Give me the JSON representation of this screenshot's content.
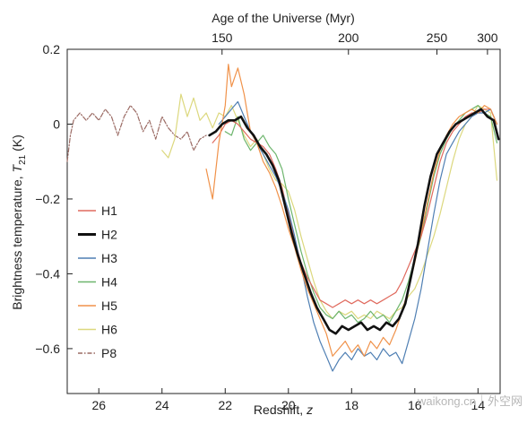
{
  "chart_data": {
    "type": "line",
    "title": "",
    "xlabel": "Redshift, z",
    "ylabel": "Brightness temperature, T21 (K)",
    "ylabel_parts": {
      "pre": "Brightness temperature, ",
      "T": "T",
      "sub": "21",
      "post": " (K)"
    },
    "xlabel_parts": {
      "pre": "Redshift, ",
      "z": "z"
    },
    "top_xlabel": "Age of the Universe (Myr)",
    "xlim": [
      27.0,
      13.3
    ],
    "ylim": [
      -0.72,
      0.2
    ],
    "x_reversed": true,
    "xticks": [
      26,
      24,
      22,
      20,
      18,
      16,
      14
    ],
    "xtick_labels": [
      "26",
      "24",
      "22",
      "20",
      "18",
      "16",
      "14"
    ],
    "yticks": [
      0.2,
      0,
      -0.2,
      -0.4,
      -0.6
    ],
    "ytick_labels": [
      "0.2",
      "0",
      "−0.2",
      "−0.4",
      "−0.6"
    ],
    "top_ticks": [
      {
        "label": "150",
        "z": 22.1
      },
      {
        "label": "200",
        "z": 18.1
      },
      {
        "label": "250",
        "z": 15.3
      },
      {
        "label": "300",
        "z": 13.7
      }
    ],
    "legend_position": "lower-left",
    "grid": false,
    "series": [
      {
        "name": "H1",
        "color": "#e06a5e",
        "width": 1.2,
        "dash": "",
        "x": [
          22.4,
          22.2,
          22.0,
          21.8,
          21.6,
          21.4,
          21.2,
          21.0,
          20.8,
          20.6,
          20.4,
          20.2,
          20.0,
          19.8,
          19.6,
          19.4,
          19.2,
          19.0,
          18.8,
          18.6,
          18.4,
          18.2,
          18.0,
          17.8,
          17.6,
          17.4,
          17.2,
          17.0,
          16.8,
          16.6,
          16.4,
          16.2,
          16.0,
          15.8,
          15.6,
          15.4,
          15.2,
          15.0,
          14.8,
          14.6,
          14.4,
          14.2,
          14.0,
          13.8,
          13.6,
          13.4
        ],
        "y": [
          -0.05,
          -0.03,
          0.0,
          0.01,
          0.0,
          -0.02,
          -0.04,
          -0.05,
          -0.06,
          -0.08,
          -0.12,
          -0.17,
          -0.24,
          -0.31,
          -0.37,
          -0.41,
          -0.44,
          -0.47,
          -0.48,
          -0.49,
          -0.48,
          -0.47,
          -0.48,
          -0.47,
          -0.48,
          -0.47,
          -0.48,
          -0.47,
          -0.46,
          -0.45,
          -0.42,
          -0.38,
          -0.34,
          -0.3,
          -0.24,
          -0.17,
          -0.1,
          -0.05,
          -0.02,
          0.0,
          0.02,
          0.03,
          0.03,
          0.04,
          0.04,
          0.0
        ]
      },
      {
        "name": "H2",
        "color": "#111111",
        "width": 2.6,
        "dash": "",
        "x": [
          22.5,
          22.3,
          22.1,
          21.9,
          21.7,
          21.5,
          21.3,
          21.1,
          20.9,
          20.7,
          20.5,
          20.3,
          20.1,
          19.9,
          19.7,
          19.5,
          19.3,
          19.1,
          18.9,
          18.7,
          18.5,
          18.3,
          18.1,
          17.9,
          17.7,
          17.5,
          17.3,
          17.1,
          16.9,
          16.7,
          16.5,
          16.3,
          16.1,
          15.9,
          15.7,
          15.5,
          15.3,
          15.1,
          14.9,
          14.7,
          14.5,
          14.3,
          14.1,
          13.9,
          13.7,
          13.5,
          13.35
        ],
        "y": [
          -0.03,
          -0.02,
          0.0,
          0.01,
          0.01,
          0.02,
          -0.01,
          -0.03,
          -0.06,
          -0.08,
          -0.11,
          -0.15,
          -0.22,
          -0.29,
          -0.35,
          -0.4,
          -0.45,
          -0.49,
          -0.52,
          -0.55,
          -0.56,
          -0.54,
          -0.55,
          -0.54,
          -0.53,
          -0.55,
          -0.54,
          -0.55,
          -0.53,
          -0.54,
          -0.52,
          -0.48,
          -0.4,
          -0.32,
          -0.22,
          -0.14,
          -0.08,
          -0.05,
          -0.02,
          0.0,
          0.01,
          0.02,
          0.03,
          0.04,
          0.02,
          0.01,
          -0.04
        ]
      },
      {
        "name": "H3",
        "color": "#4f7fb3",
        "width": 1.2,
        "dash": "",
        "x": [
          22.2,
          22.0,
          21.8,
          21.6,
          21.4,
          21.2,
          21.0,
          20.8,
          20.6,
          20.4,
          20.2,
          20.0,
          19.8,
          19.6,
          19.4,
          19.2,
          19.0,
          18.8,
          18.6,
          18.4,
          18.2,
          18.0,
          17.8,
          17.6,
          17.4,
          17.2,
          17.0,
          16.8,
          16.6,
          16.4,
          16.2,
          16.0,
          15.8,
          15.6,
          15.4,
          15.2,
          15.0,
          14.8,
          14.6,
          14.4,
          14.2,
          14.0,
          13.8,
          13.6,
          13.4
        ],
        "y": [
          0.0,
          0.02,
          0.04,
          0.06,
          0.02,
          -0.02,
          -0.05,
          -0.08,
          -0.11,
          -0.14,
          -0.18,
          -0.23,
          -0.3,
          -0.38,
          -0.46,
          -0.53,
          -0.58,
          -0.62,
          -0.66,
          -0.63,
          -0.61,
          -0.63,
          -0.6,
          -0.62,
          -0.61,
          -0.63,
          -0.6,
          -0.62,
          -0.61,
          -0.64,
          -0.58,
          -0.52,
          -0.44,
          -0.34,
          -0.24,
          -0.15,
          -0.08,
          -0.05,
          -0.02,
          0.0,
          0.02,
          0.03,
          0.03,
          0.04,
          0.0
        ]
      },
      {
        "name": "H4",
        "color": "#6db56d",
        "width": 1.2,
        "dash": "",
        "x": [
          22.0,
          21.8,
          21.6,
          21.4,
          21.2,
          21.0,
          20.8,
          20.6,
          20.4,
          20.2,
          20.0,
          19.8,
          19.6,
          19.4,
          19.2,
          19.0,
          18.8,
          18.6,
          18.4,
          18.2,
          18.0,
          17.8,
          17.6,
          17.4,
          17.2,
          17.0,
          16.8,
          16.6,
          16.4,
          16.2,
          16.0,
          15.8,
          15.6,
          15.4,
          15.2,
          15.0,
          14.8,
          14.6,
          14.4,
          14.2,
          14.0,
          13.8,
          13.6,
          13.4
        ],
        "y": [
          -0.02,
          -0.03,
          0.02,
          -0.04,
          -0.07,
          -0.05,
          -0.03,
          -0.06,
          -0.08,
          -0.12,
          -0.2,
          -0.27,
          -0.34,
          -0.4,
          -0.45,
          -0.49,
          -0.51,
          -0.52,
          -0.5,
          -0.52,
          -0.51,
          -0.53,
          -0.52,
          -0.5,
          -0.52,
          -0.51,
          -0.53,
          -0.5,
          -0.47,
          -0.42,
          -0.36,
          -0.3,
          -0.22,
          -0.14,
          -0.08,
          -0.04,
          -0.01,
          0.01,
          0.03,
          0.04,
          0.05,
          0.03,
          0.02,
          -0.05
        ]
      },
      {
        "name": "H5",
        "color": "#f0924a",
        "width": 1.2,
        "dash": "",
        "x": [
          22.6,
          22.4,
          22.2,
          22.0,
          21.9,
          21.8,
          21.6,
          21.4,
          21.2,
          21.0,
          20.8,
          20.6,
          20.4,
          20.2,
          20.0,
          19.8,
          19.6,
          19.4,
          19.2,
          19.0,
          18.8,
          18.6,
          18.4,
          18.2,
          18.0,
          17.8,
          17.6,
          17.4,
          17.2,
          17.0,
          16.8,
          16.6,
          16.4,
          16.2,
          16.0,
          15.8,
          15.6,
          15.4,
          15.2,
          15.0,
          14.8,
          14.6,
          14.4,
          14.2,
          14.0,
          13.8,
          13.6,
          13.4
        ],
        "y": [
          -0.12,
          -0.2,
          -0.05,
          0.05,
          0.16,
          0.1,
          0.15,
          0.08,
          -0.02,
          -0.05,
          -0.1,
          -0.13,
          -0.17,
          -0.22,
          -0.28,
          -0.33,
          -0.39,
          -0.44,
          -0.48,
          -0.52,
          -0.56,
          -0.62,
          -0.6,
          -0.58,
          -0.61,
          -0.59,
          -0.62,
          -0.58,
          -0.6,
          -0.57,
          -0.59,
          -0.55,
          -0.5,
          -0.44,
          -0.37,
          -0.29,
          -0.21,
          -0.13,
          -0.07,
          -0.03,
          0.0,
          0.02,
          0.03,
          0.04,
          0.03,
          0.05,
          0.04,
          0.0
        ]
      },
      {
        "name": "H6",
        "color": "#dcd87e",
        "width": 1.2,
        "dash": "",
        "x": [
          24.0,
          23.8,
          23.6,
          23.4,
          23.2,
          23.0,
          22.8,
          22.6,
          22.4,
          22.2,
          22.0,
          21.8,
          21.6,
          21.4,
          21.2,
          21.0,
          20.8,
          20.6,
          20.4,
          20.2,
          20.0,
          19.8,
          19.6,
          19.4,
          19.2,
          19.0,
          18.8,
          18.6,
          18.4,
          18.2,
          18.0,
          17.8,
          17.6,
          17.4,
          17.2,
          17.0,
          16.8,
          16.6,
          16.4,
          16.2,
          16.0,
          15.8,
          15.6,
          15.4,
          15.2,
          15.0,
          14.8,
          14.6,
          14.4,
          14.2,
          14.0,
          13.8,
          13.6,
          13.4
        ],
        "y": [
          -0.07,
          -0.09,
          -0.04,
          0.08,
          0.02,
          0.07,
          0.01,
          0.03,
          -0.01,
          0.03,
          0.02,
          0.05,
          0.01,
          -0.03,
          -0.06,
          -0.04,
          -0.08,
          -0.12,
          -0.15,
          -0.16,
          -0.18,
          -0.23,
          -0.3,
          -0.36,
          -0.42,
          -0.47,
          -0.5,
          -0.52,
          -0.5,
          -0.51,
          -0.5,
          -0.52,
          -0.51,
          -0.52,
          -0.5,
          -0.51,
          -0.52,
          -0.5,
          -0.49,
          -0.46,
          -0.44,
          -0.4,
          -0.35,
          -0.3,
          -0.24,
          -0.17,
          -0.1,
          -0.04,
          0.0,
          0.02,
          0.05,
          0.04,
          0.03,
          -0.15
        ]
      },
      {
        "name": "P8",
        "color": "#9b6b64",
        "width": 1.2,
        "dash": "5,2,1.5,2",
        "x": [
          27.0,
          26.9,
          26.8,
          26.6,
          26.4,
          26.2,
          26.0,
          25.8,
          25.6,
          25.4,
          25.2,
          25.0,
          24.8,
          24.6,
          24.4,
          24.2,
          24.0,
          23.8,
          23.6,
          23.4,
          23.2,
          23.0,
          22.8,
          22.6
        ],
        "y": [
          -0.1,
          -0.03,
          0.01,
          0.03,
          0.01,
          0.03,
          0.01,
          0.04,
          0.02,
          -0.03,
          0.02,
          0.05,
          0.03,
          -0.02,
          0.01,
          -0.04,
          0.02,
          -0.01,
          -0.03,
          -0.04,
          -0.02,
          -0.07,
          -0.04,
          -0.03
        ]
      }
    ]
  },
  "watermark": {
    "text": "waikong.cn｜外空网"
  }
}
